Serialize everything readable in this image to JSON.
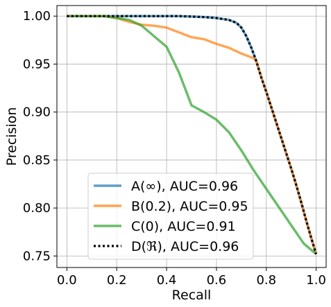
{
  "chart_data": {
    "type": "line",
    "title": "",
    "xlabel": "Recall",
    "ylabel": "Precision",
    "xlim": [
      -0.04,
      1.04
    ],
    "ylim": [
      0.738,
      1.011
    ],
    "grid": true,
    "legend_position": "lower-left",
    "x_ticks": [
      0.0,
      0.2,
      0.4,
      0.6,
      0.8,
      1.0
    ],
    "x_tick_labels": [
      "0.0",
      "0.2",
      "0.4",
      "0.6",
      "0.8",
      "1.0"
    ],
    "y_ticks": [
      0.75,
      0.8,
      0.85,
      0.9,
      0.95,
      1.0
    ],
    "y_tick_labels": [
      "0.75",
      "0.80",
      "0.85",
      "0.90",
      "0.95",
      "1.00"
    ],
    "series": [
      {
        "name": "A(∞), AUC=0.96",
        "color": "#1f77b4",
        "style": "solid",
        "x": [
          0.0,
          0.2,
          0.35,
          0.45,
          0.5,
          0.55,
          0.6,
          0.65,
          0.68,
          0.7,
          0.72,
          0.74,
          0.76,
          0.78,
          0.8,
          0.82,
          0.84,
          0.86,
          0.88,
          0.9,
          0.92,
          0.94,
          0.96,
          0.98,
          1.0
        ],
        "y": [
          1.0,
          1.0,
          1.0,
          1.0,
          0.9995,
          0.999,
          0.998,
          0.996,
          0.993,
          0.988,
          0.979,
          0.967,
          0.953,
          0.936,
          0.921,
          0.905,
          0.889,
          0.873,
          0.857,
          0.841,
          0.824,
          0.806,
          0.787,
          0.769,
          0.752
        ]
      },
      {
        "name": "B(0.2), AUC=0.95",
        "color": "#ff7f0e",
        "style": "solid",
        "x": [
          0.0,
          0.15,
          0.2,
          0.25,
          0.3,
          0.35,
          0.4,
          0.45,
          0.5,
          0.55,
          0.6,
          0.65,
          0.7,
          0.75,
          0.76,
          0.78,
          0.8,
          0.82,
          0.84,
          0.86,
          0.88,
          0.9,
          0.92,
          0.94,
          0.96,
          0.98,
          1.0
        ],
        "y": [
          1.0,
          1.0,
          0.998,
          0.994,
          0.991,
          0.99,
          0.988,
          0.983,
          0.978,
          0.976,
          0.971,
          0.967,
          0.961,
          0.956,
          0.953,
          0.936,
          0.921,
          0.905,
          0.889,
          0.873,
          0.857,
          0.841,
          0.824,
          0.806,
          0.787,
          0.769,
          0.752
        ]
      },
      {
        "name": "C(0), AUC=0.91",
        "color": "#2ca02c",
        "style": "solid",
        "x": [
          0.0,
          0.15,
          0.2,
          0.25,
          0.3,
          0.35,
          0.4,
          0.45,
          0.5,
          0.55,
          0.6,
          0.65,
          0.7,
          0.75,
          0.8,
          0.85,
          0.9,
          0.95,
          1.0
        ],
        "y": [
          1.0,
          1.0,
          0.998,
          0.996,
          0.99,
          0.979,
          0.968,
          0.941,
          0.907,
          0.9,
          0.892,
          0.879,
          0.86,
          0.839,
          0.82,
          0.801,
          0.782,
          0.763,
          0.752
        ]
      },
      {
        "name": "D(ℜ), AUC=0.96",
        "color": "#000000",
        "style": "dotted",
        "x": [
          0.0,
          0.2,
          0.35,
          0.45,
          0.5,
          0.55,
          0.6,
          0.65,
          0.68,
          0.7,
          0.72,
          0.74,
          0.76,
          0.78,
          0.8,
          0.82,
          0.84,
          0.86,
          0.88,
          0.9,
          0.92,
          0.94,
          0.96,
          0.98,
          1.0
        ],
        "y": [
          1.0,
          1.0,
          1.0,
          1.0,
          0.9995,
          0.999,
          0.998,
          0.996,
          0.993,
          0.988,
          0.979,
          0.967,
          0.953,
          0.936,
          0.921,
          0.905,
          0.889,
          0.873,
          0.857,
          0.841,
          0.824,
          0.806,
          0.787,
          0.769,
          0.752
        ]
      }
    ]
  }
}
